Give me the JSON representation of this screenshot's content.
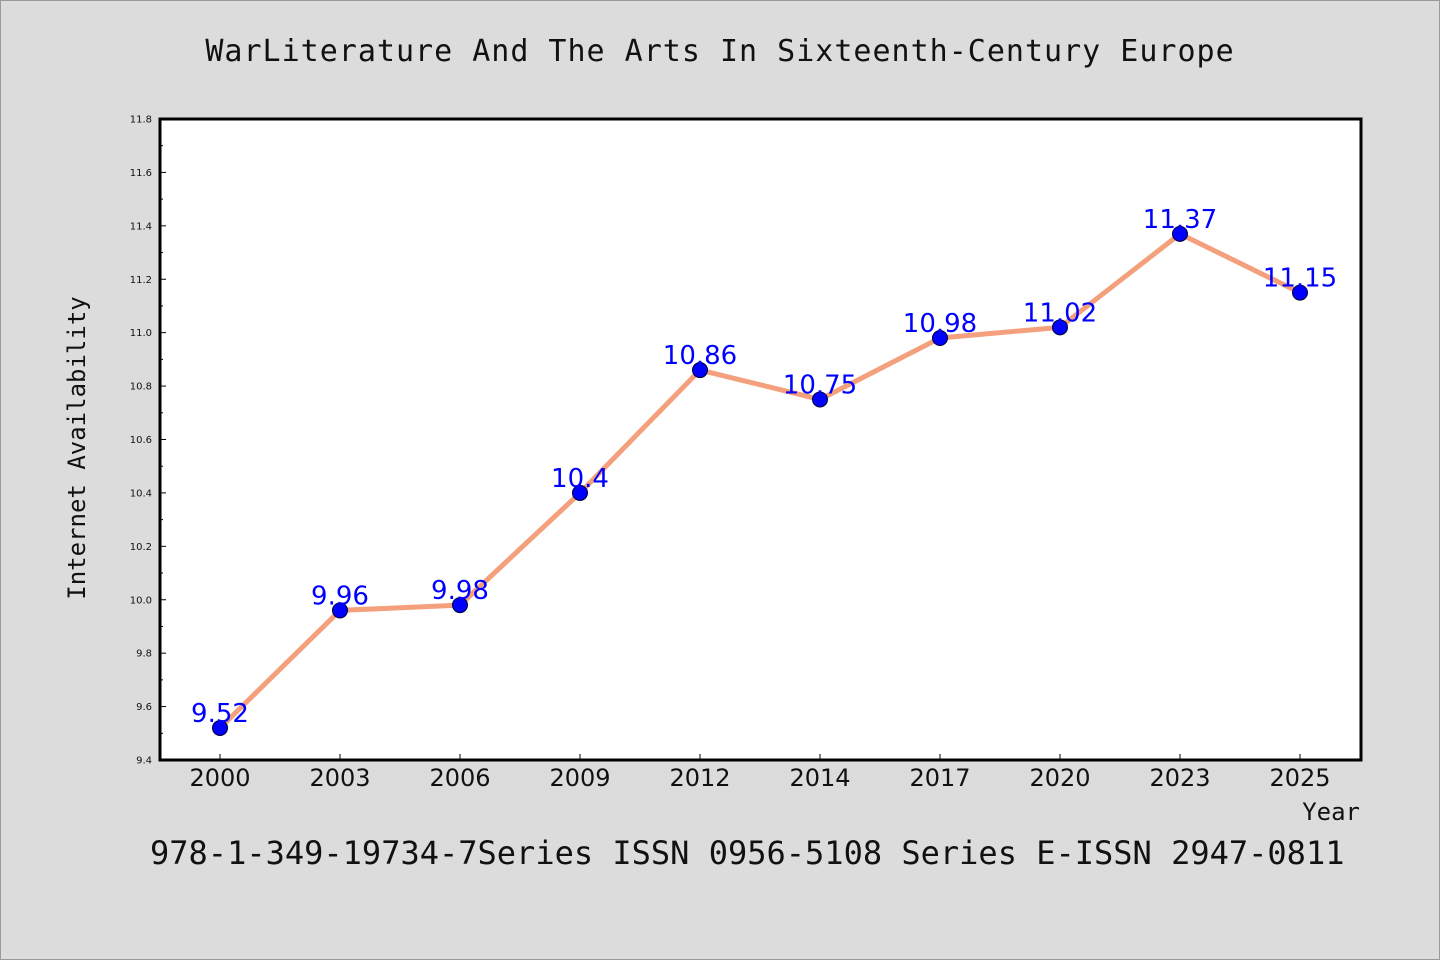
{
  "title": "WarLiterature And The Arts In Sixteenth-Century Europe",
  "footer": "978-1-349-19734-7Series ISSN 0956-5108 Series E-ISSN 2947-0811",
  "colors": {
    "background": "#dcdcdc",
    "plot_background": "#ffffff",
    "line": "#f4a07c",
    "marker": "#0000ff",
    "label": "#0000ff"
  },
  "chart_data": {
    "type": "line",
    "xlabel": "Year",
    "ylabel": "Internet Availability",
    "categories": [
      "2000",
      "2003",
      "2006",
      "2009",
      "2012",
      "2014",
      "2017",
      "2020",
      "2023",
      "2025"
    ],
    "series": [
      {
        "values": [
          9.52,
          9.96,
          9.98,
          10.4,
          10.86,
          10.75,
          10.98,
          11.02,
          11.37,
          11.15
        ],
        "labels": [
          "9.52",
          "9.96",
          "9.98",
          "10.4",
          "10.86",
          "10.75",
          "10.98",
          "11.02",
          "11.37",
          "11.15"
        ]
      }
    ],
    "ylim": [
      9.4,
      11.8
    ],
    "yticks": [
      "9.4",
      "9.6",
      "9.8",
      "10.0",
      "10.2",
      "10.4",
      "10.6",
      "10.8",
      "11.0",
      "11.2",
      "11.4",
      "11.6",
      "11.8"
    ],
    "grid": false,
    "legend": "none"
  }
}
